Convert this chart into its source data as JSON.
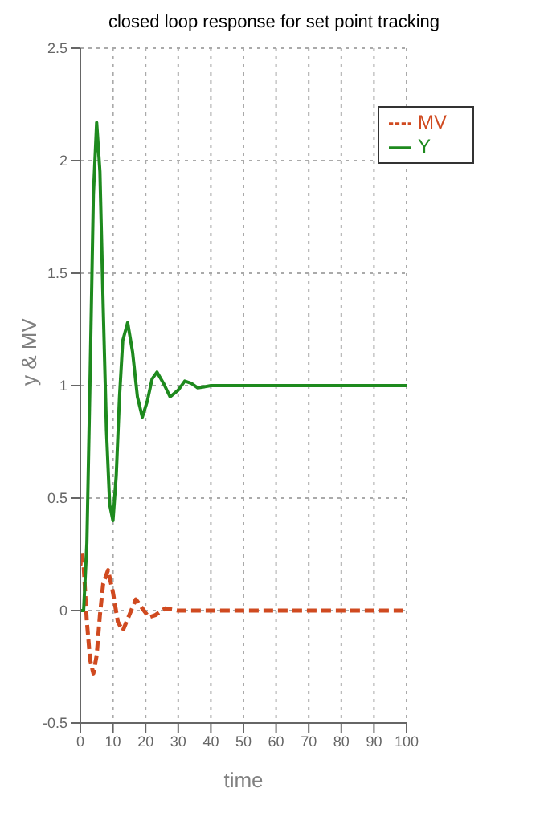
{
  "chart_data": {
    "type": "line",
    "title": "closed loop response for set point tracking",
    "xlabel": "time",
    "ylabel": "y & MV",
    "xlim": [
      0,
      100
    ],
    "xticks": [
      0,
      10,
      20,
      30,
      40,
      50,
      60,
      70,
      80,
      90,
      100
    ],
    "ylim": [
      -0.5,
      2.5
    ],
    "yticks": [
      -0.5,
      0,
      0.5,
      1,
      1.5,
      2,
      2.5
    ],
    "grid": true,
    "legend": "top right",
    "series": [
      {
        "name": "MV",
        "color": "#d04a20",
        "line_style": "dashed",
        "x": [
          0,
          0.5,
          1,
          2,
          3,
          4,
          5,
          6,
          7,
          8.5,
          10,
          11.5,
          13,
          15,
          17,
          19,
          21,
          23,
          26,
          30,
          35,
          100
        ],
        "values": [
          0.2,
          0.26,
          0.2,
          -0.05,
          -0.22,
          -0.28,
          -0.2,
          -0.02,
          0.12,
          0.18,
          0.08,
          -0.05,
          -0.09,
          -0.02,
          0.05,
          0.01,
          -0.03,
          -0.02,
          0.01,
          0,
          0,
          0
        ]
      },
      {
        "name": "Y",
        "color": "#1e8a1e",
        "line_style": "solid",
        "x": [
          0,
          1,
          2,
          3,
          4,
          5,
          6,
          7,
          8,
          9,
          10,
          11,
          12,
          13,
          14.5,
          16,
          17.5,
          19,
          20.5,
          22,
          23.5,
          25.5,
          27.5,
          30,
          32,
          34,
          36,
          40,
          100
        ],
        "values": [
          0,
          0,
          0.3,
          1.05,
          1.85,
          2.17,
          1.95,
          1.35,
          0.8,
          0.47,
          0.4,
          0.6,
          0.95,
          1.2,
          1.28,
          1.15,
          0.95,
          0.86,
          0.93,
          1.03,
          1.06,
          1.01,
          0.95,
          0.98,
          1.02,
          1.01,
          0.99,
          1,
          1
        ]
      }
    ]
  }
}
